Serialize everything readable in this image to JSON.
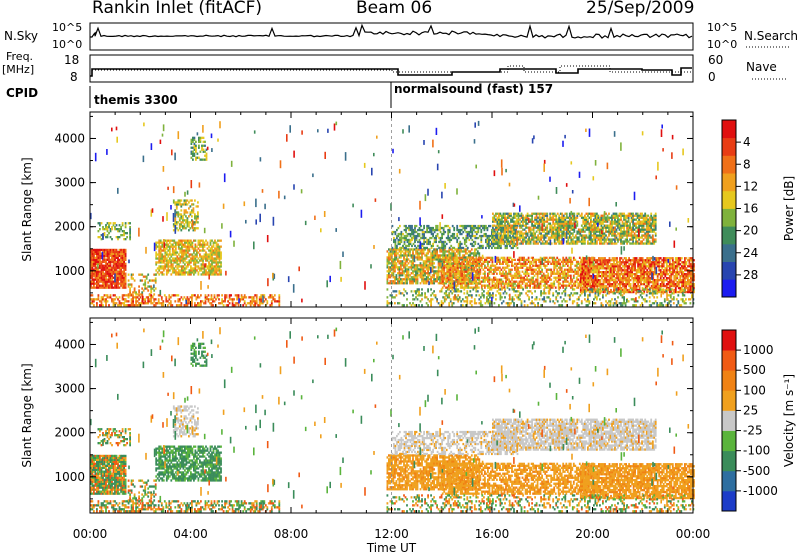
{
  "header": {
    "station": "Rankin Inlet (fitACF)",
    "beam": "Beam 06",
    "date": "25/Sep/2009"
  },
  "aux": {
    "nsky_label": "N.Sky",
    "nsearch_label": "N.Search",
    "freq_label_1": "Freq.",
    "freq_label_2": "[MHz]",
    "nave_label": "Nave",
    "cpid_label": "CPID",
    "nsky_ticks": [
      "10^5",
      "10^0"
    ],
    "nsearch_ticks": [
      "10^5",
      "10^0"
    ],
    "freq_ticks": [
      "18",
      "8"
    ],
    "nave_ticks": [
      "60",
      "0"
    ]
  },
  "cpid_segments": [
    {
      "label": "themis 3300",
      "start_hour": 0
    },
    {
      "label": "normalsound (fast) 157",
      "start_hour": 12
    }
  ],
  "colors": {
    "missing": "#ffffff",
    "ground_scatter": "#c8c8c8"
  },
  "chart_data": [
    {
      "type": "heatmap",
      "name": "power",
      "ylabel": "Slant Range [km]",
      "xlabel": "Time UT",
      "y_ticks": [
        "1000",
        "2000",
        "3000",
        "4000"
      ],
      "x_ticks": [
        "00:00",
        "04:00",
        "08:00",
        "12:00",
        "16:00",
        "20:00",
        "00:00"
      ],
      "xlim_hours": [
        0,
        24
      ],
      "ylim_km": [
        180,
        4600
      ],
      "colorbar": {
        "label": "Power [dB]",
        "tick_labels": [
          "4",
          "8",
          "12",
          "16",
          "20",
          "24",
          "28"
        ],
        "range": [
          0,
          30
        ],
        "colors": [
          "#1c1cf0",
          "#2845b0",
          "#3a6f8c",
          "#3f8c5a",
          "#7fb23c",
          "#e6c81e",
          "#f0a01e",
          "#f07018",
          "#e83c14",
          "#e00f0f"
        ]
      }
    },
    {
      "type": "heatmap",
      "name": "velocity",
      "ylabel": "Slant Range [km]",
      "xlabel": "Time UT",
      "y_ticks": [
        "1000",
        "2000",
        "3000",
        "4000"
      ],
      "x_ticks": [
        "00:00",
        "04:00",
        "08:00",
        "12:00",
        "16:00",
        "20:00",
        "00:00"
      ],
      "xlim_hours": [
        0,
        24
      ],
      "ylim_km": [
        180,
        4600
      ],
      "colorbar": {
        "label": "Velocity [m s⁻¹]",
        "tick_labels": [
          "1000",
          "500",
          "100",
          "25",
          "-25",
          "-100",
          "-500",
          "-1000"
        ],
        "colors": [
          "#1c3cc8",
          "#2e6ea0",
          "#3a8c5a",
          "#5ab43c",
          "#c8c8c8",
          "#f0a01e",
          "#f08214",
          "#f05a14",
          "#e01010"
        ]
      }
    }
  ]
}
